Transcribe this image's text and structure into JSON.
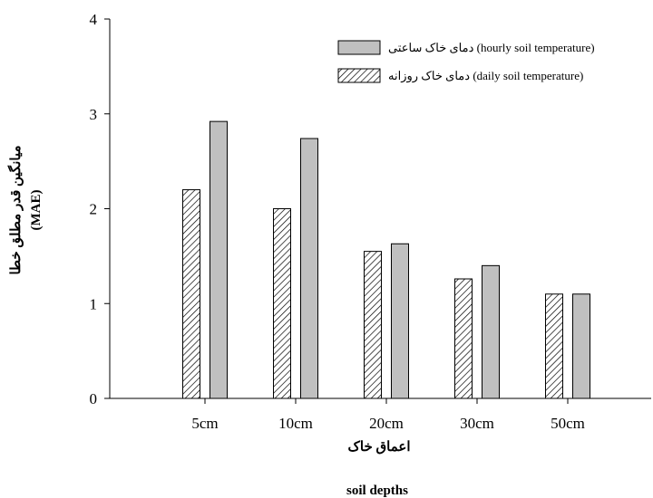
{
  "chart_data": {
    "type": "bar",
    "categories": [
      "5cm",
      "10cm",
      "20cm",
      "30cm",
      "50cm"
    ],
    "series": [
      {
        "name": "دمای خاک روزانه (daily soil temperature)",
        "values": [
          2.2,
          2.0,
          1.55,
          1.26,
          1.1
        ],
        "pattern": "hatch"
      },
      {
        "name": "دمای خاک ساعتی (hourly soil temperature)",
        "values": [
          2.92,
          2.74,
          1.63,
          1.4,
          1.1
        ],
        "pattern": "solid"
      }
    ],
    "ylim": [
      0,
      4
    ],
    "yticks": [
      0,
      1,
      2,
      3,
      4
    ],
    "ylabel": [
      "میانگین قدر مطلق خطا",
      "(MAE)"
    ],
    "xlabel": [
      "اعماق خاک",
      "soil depths"
    ],
    "legend_position": "top-right",
    "grid": false,
    "colors": {
      "solid_fill": "#c0c0c0",
      "hatch_line": "#000000",
      "stroke": "#000000"
    }
  }
}
